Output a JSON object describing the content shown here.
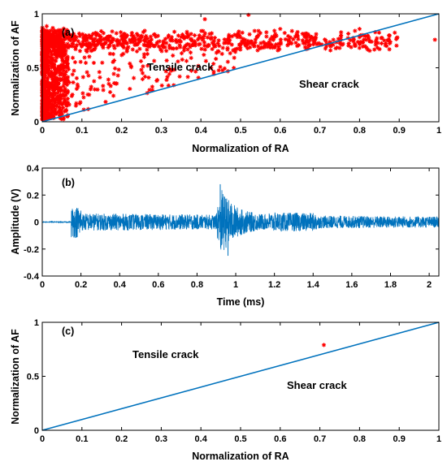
{
  "chart_data": [
    {
      "type": "scatter",
      "panel_label": "(a)",
      "xlabel": "Normalization of RA",
      "ylabel": "Normalization of AF",
      "xlim": [
        0,
        1
      ],
      "ylim": [
        0,
        1
      ],
      "xticks": [
        "0",
        "0.1",
        "0.2",
        "0.3",
        "0.4",
        "0.5",
        "0.6",
        "0.7",
        "0.8",
        "0.9",
        "1"
      ],
      "yticks": [
        "0",
        "0.5",
        "1"
      ],
      "marker_color": "#ff0000",
      "line_color": "#0072bd",
      "divider": {
        "x": [
          0,
          1
        ],
        "y": [
          0,
          1
        ]
      },
      "annotations": [
        {
          "text": "Tensile crack",
          "x": 0.27,
          "y": 0.49
        },
        {
          "text": "Shear crack",
          "x": 0.73,
          "y": 0.33
        }
      ],
      "points_note_clusters": [
        {
          "x": [
            0.0,
            0.06
          ],
          "y": [
            0.0,
            0.9
          ],
          "density": "very high"
        },
        {
          "x": [
            0.0,
            0.9
          ],
          "y": [
            0.68,
            0.88
          ],
          "density": "high"
        }
      ]
    },
    {
      "type": "line",
      "panel_label": "(b)",
      "xlabel": "Time (ms)",
      "ylabel": "Amplitude (V)",
      "xlim": [
        0,
        2.05
      ],
      "ylim": [
        -0.4,
        0.4
      ],
      "xticks": [
        "0",
        "0.2",
        "0.4",
        "0.6",
        "0.8",
        "1",
        "1.2",
        "1.4",
        "1.6",
        "1.8",
        "2"
      ],
      "yticks": [
        "-0.4",
        "-0.2",
        "0",
        "0.2",
        "0.4"
      ],
      "line_color": "#0072bd",
      "signal_features": {
        "onset_ms": 0.15,
        "background_amplitude": 0.06,
        "burst_ms": 0.92,
        "burst_peak": 0.28,
        "burst_trough": -0.25
      }
    },
    {
      "type": "scatter",
      "panel_label": "(c)",
      "xlabel": "Normalization of RA",
      "ylabel": "Normalization of AF",
      "xlim": [
        0,
        1
      ],
      "ylim": [
        0,
        1
      ],
      "xticks": [
        "0",
        "0.1",
        "0.2",
        "0.3",
        "0.4",
        "0.5",
        "0.6",
        "0.7",
        "0.8",
        "0.9",
        "1"
      ],
      "yticks": [
        "0",
        "0.5",
        "1"
      ],
      "marker_color": "#ff0000",
      "line_color": "#0072bd",
      "divider": {
        "x": [
          0,
          1
        ],
        "y": [
          0,
          1
        ]
      },
      "points": [
        {
          "x": 0.71,
          "y": 0.79
        }
      ],
      "annotations": [
        {
          "text": "Tensile crack",
          "x": 0.22,
          "y": 0.7
        },
        {
          "text": "Shear crack",
          "x": 0.61,
          "y": 0.41
        }
      ]
    }
  ]
}
